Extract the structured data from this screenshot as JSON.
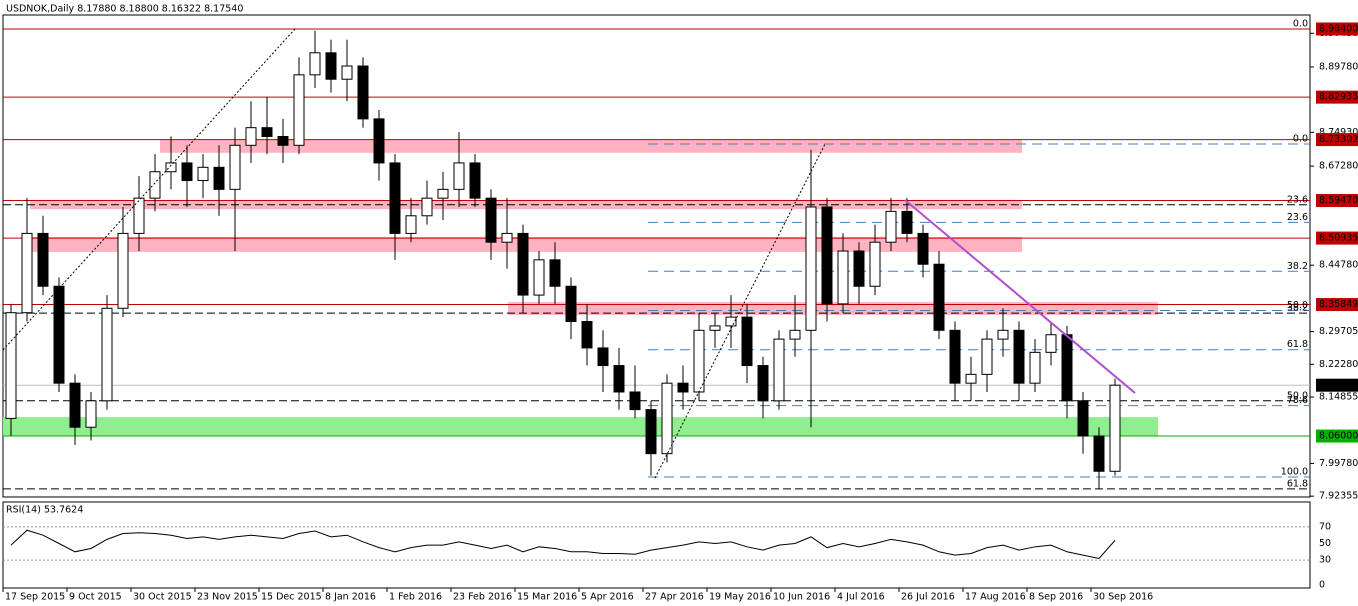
{
  "chart_data": {
    "type": "candlestick",
    "title": "USDNOK,Daily  8.17880 8.18800 8.16322 8.17540",
    "categories": [
      "17 Sep 2015",
      null,
      null,
      null,
      "9 Oct 2015",
      null,
      null,
      null,
      "30 Oct 2015",
      null,
      null,
      null,
      "23 Nov 2015",
      null,
      null,
      null,
      "15 Dec 2015",
      null,
      null,
      null,
      "8 Jan 2016",
      null,
      null,
      null,
      "1 Feb 2016",
      null,
      null,
      null,
      "23 Feb 2016",
      null,
      null,
      null,
      "15 Mar 2016",
      null,
      null,
      null,
      "5 Apr 2016",
      null,
      null,
      null,
      "27 Apr 2016",
      null,
      null,
      null,
      "19 May 2016",
      null,
      null,
      null,
      "10 Jun 2016",
      null,
      null,
      null,
      "4 Jul 2016",
      null,
      null,
      null,
      "26 Jul 2016",
      null,
      null,
      null,
      "17 Aug 2016",
      null,
      null,
      null,
      "8 Sep 2016",
      null,
      null,
      null,
      "30 Sep 2016",
      null
    ],
    "open": [
      8.1,
      8.34,
      8.52,
      8.4,
      8.18,
      8.08,
      8.14,
      8.35,
      8.52,
      8.6,
      8.66,
      8.68,
      8.64,
      8.67,
      8.62,
      8.72,
      8.76,
      8.74,
      8.72,
      8.88,
      8.93,
      8.87,
      8.9,
      8.78,
      8.68,
      8.52,
      8.56,
      8.6,
      8.62,
      8.68,
      8.6,
      8.5,
      8.52,
      8.38,
      8.46,
      8.4,
      8.32,
      8.26,
      8.22,
      8.16,
      8.12,
      8.02,
      8.18,
      8.16,
      8.3,
      8.31,
      8.33,
      8.22,
      8.14,
      8.28,
      8.3,
      8.58,
      8.36,
      8.48,
      8.4,
      8.5,
      8.57,
      8.52,
      8.45,
      8.3,
      8.18,
      8.2,
      8.28,
      8.3,
      8.18,
      8.25,
      8.29,
      8.14,
      8.06,
      7.98
    ],
    "high": [
      8.36,
      8.6,
      8.56,
      8.42,
      8.2,
      8.16,
      8.38,
      8.58,
      8.65,
      8.7,
      8.74,
      8.72,
      8.7,
      8.72,
      8.76,
      8.82,
      8.83,
      8.78,
      8.92,
      8.98,
      8.96,
      8.96,
      8.92,
      8.8,
      8.7,
      8.6,
      8.64,
      8.66,
      8.75,
      8.7,
      8.62,
      8.6,
      8.54,
      8.48,
      8.5,
      8.42,
      8.36,
      8.3,
      8.26,
      8.22,
      8.14,
      8.2,
      8.22,
      8.34,
      8.34,
      8.38,
      8.36,
      8.24,
      8.3,
      8.38,
      8.71,
      8.6,
      8.52,
      8.5,
      8.54,
      8.6,
      8.6,
      8.54,
      8.48,
      8.32,
      8.24,
      8.3,
      8.35,
      8.32,
      8.28,
      8.32,
      8.31,
      8.16,
      8.08,
      8.19
    ],
    "low": [
      8.06,
      8.32,
      8.38,
      8.16,
      8.04,
      8.05,
      8.12,
      8.33,
      8.48,
      8.57,
      8.62,
      8.58,
      8.6,
      8.56,
      8.48,
      8.68,
      8.7,
      8.68,
      8.7,
      8.85,
      8.84,
      8.82,
      8.76,
      8.64,
      8.46,
      8.5,
      8.54,
      8.55,
      8.58,
      8.58,
      8.46,
      8.44,
      8.34,
      8.36,
      8.36,
      8.28,
      8.22,
      8.16,
      8.12,
      8.1,
      7.97,
      8.0,
      8.12,
      8.14,
      8.26,
      8.26,
      8.18,
      8.1,
      8.12,
      8.24,
      8.08,
      8.32,
      8.34,
      8.36,
      8.38,
      8.48,
      8.5,
      8.42,
      8.28,
      8.14,
      8.14,
      8.16,
      8.24,
      8.14,
      8.16,
      8.22,
      8.1,
      8.02,
      7.94,
      7.97
    ],
    "close": [
      8.34,
      8.52,
      8.4,
      8.18,
      8.08,
      8.14,
      8.35,
      8.52,
      8.6,
      8.66,
      8.68,
      8.64,
      8.67,
      8.62,
      8.72,
      8.76,
      8.74,
      8.72,
      8.88,
      8.93,
      8.87,
      8.9,
      8.78,
      8.68,
      8.52,
      8.56,
      8.6,
      8.62,
      8.68,
      8.6,
      8.5,
      8.52,
      8.38,
      8.46,
      8.4,
      8.32,
      8.26,
      8.22,
      8.16,
      8.12,
      8.02,
      8.18,
      8.16,
      8.3,
      8.31,
      8.33,
      8.22,
      8.14,
      8.28,
      8.3,
      8.58,
      8.36,
      8.48,
      8.4,
      8.5,
      8.57,
      8.52,
      8.45,
      8.3,
      8.18,
      8.2,
      8.28,
      8.3,
      8.18,
      8.25,
      8.29,
      8.14,
      8.06,
      7.98,
      8.1754
    ],
    "up_color": "#ffffff",
    "down_color": "#000000",
    "ylim": [
      7.9216,
      9.0158
    ],
    "yticks": [
      {
        "value": 8.9743,
        "label": "8.97430"
      },
      {
        "value": 8.8978,
        "label": "8.89780"
      },
      {
        "value": 8.7493,
        "label": "8.74930"
      },
      {
        "value": 8.6728,
        "label": "8.67280"
      },
      {
        "value": 8.4478,
        "label": "8.44780"
      },
      {
        "value": 8.29705,
        "label": "8.29705"
      },
      {
        "value": 8.2228,
        "label": "8.22280"
      },
      {
        "value": 8.14855,
        "label": "8.14855"
      },
      {
        "value": 7.9978,
        "label": "7.99780"
      },
      {
        "value": 7.92355,
        "label": "7.92355"
      }
    ],
    "levels": [
      {
        "value": 8.984,
        "label": "8.98400",
        "color": "#c00000"
      },
      {
        "value": 8.82935,
        "label": "8.82935",
        "color": "#c00000"
      },
      {
        "value": 8.73302,
        "label": "8.73302",
        "color": "#c00000"
      },
      {
        "value": 8.5947,
        "label": "8.59470",
        "color": "#c00000"
      },
      {
        "value": 8.50935,
        "label": "8.50935",
        "color": "#c00000"
      },
      {
        "value": 8.35849,
        "label": "8.35849",
        "color": "#c00000"
      },
      {
        "value": 8.1754,
        "label": "8.17540",
        "color": "#000000"
      },
      {
        "value": 8.06,
        "label": "8.06000",
        "color": "#00b000"
      }
    ],
    "zones": [
      {
        "low": 8.703,
        "high": 8.733,
        "color": "#ffb3c1"
      },
      {
        "low": 8.575,
        "high": 8.596,
        "color": "#ffb3c1"
      },
      {
        "low": 8.478,
        "high": 8.512,
        "color": "#ffb3c1"
      },
      {
        "low": 8.335,
        "high": 8.364,
        "color": "#ffb3c1"
      },
      {
        "low": 8.06,
        "high": 8.103,
        "color": "#90ee90"
      }
    ],
    "fib": [
      {
        "color": "#000000",
        "levels": [
          {
            "value": 8.984,
            "label": "0.0"
          },
          {
            "value": 8.585,
            "label": "23.6"
          },
          {
            "value": 8.339,
            "label": "38.2"
          },
          {
            "value": 8.14,
            "label": "50.0"
          },
          {
            "value": 7.94,
            "label": "61.8"
          }
        ]
      },
      {
        "color": "#4a7fb5",
        "levels": [
          {
            "value": 8.723,
            "label": "0.0"
          },
          {
            "value": 8.545,
            "label": "23.6"
          },
          {
            "value": 8.434,
            "label": "38.2"
          },
          {
            "value": 8.345,
            "label": "50.0"
          },
          {
            "value": 8.256,
            "label": "61.8"
          },
          {
            "value": 8.129,
            "label": "78.6"
          },
          {
            "value": 7.967,
            "label": "100.0"
          }
        ]
      }
    ],
    "rsi": {
      "title": "RSI(14) 53.7624",
      "values": [
        48,
        66,
        60,
        50,
        40,
        44,
        55,
        62,
        63,
        62,
        60,
        56,
        58,
        55,
        58,
        60,
        58,
        56,
        62,
        65,
        58,
        60,
        52,
        45,
        40,
        45,
        48,
        48,
        52,
        48,
        44,
        48,
        40,
        46,
        44,
        40,
        40,
        38,
        38,
        37,
        42,
        45,
        48,
        52,
        50,
        52,
        46,
        42,
        48,
        50,
        58,
        45,
        50,
        46,
        50,
        55,
        52,
        48,
        40,
        36,
        38,
        45,
        48,
        42,
        46,
        48,
        40,
        36,
        32,
        53.7624
      ],
      "color": "#000000",
      "ylim": [
        0,
        100
      ],
      "yticks": [
        70,
        50,
        30,
        0
      ],
      "levels": [
        70,
        30
      ]
    }
  }
}
